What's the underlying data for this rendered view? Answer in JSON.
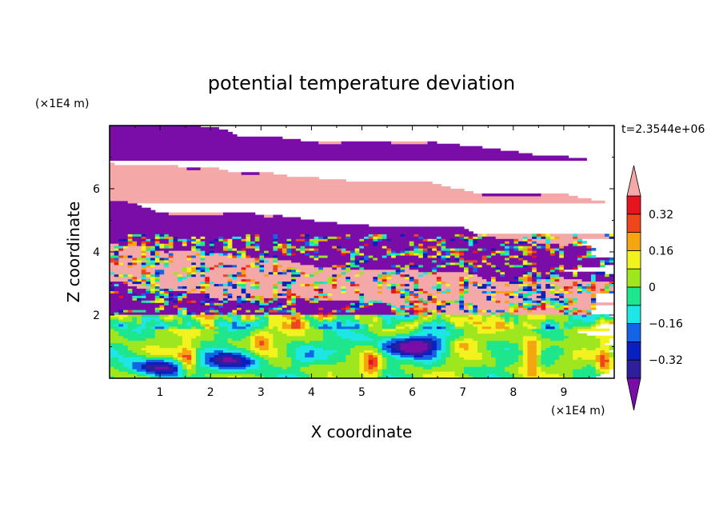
{
  "chart_data": {
    "type": "heatmap",
    "title": "potential temperature deviation",
    "xlabel": "X coordinate",
    "ylabel": "Z coordinate",
    "x_unit": "(×1E4 m)",
    "y_unit": "(×1E4 m)",
    "time_label": "t=2.3544e+06",
    "xlim": [
      0,
      10
    ],
    "ylim": [
      0,
      8
    ],
    "x_ticks": [
      "1",
      "2",
      "3",
      "4",
      "5",
      "6",
      "7",
      "8",
      "9"
    ],
    "y_ticks": [
      "2",
      "4",
      "6"
    ],
    "colorbar": {
      "levels": [
        -0.4,
        -0.32,
        -0.24,
        -0.16,
        -0.08,
        0,
        0.08,
        0.16,
        0.24,
        0.32,
        0.4
      ],
      "tick_labels": [
        "0.32",
        "0.16",
        "0",
        "−0.16",
        "−0.32"
      ],
      "extend": "both",
      "colors": [
        "#7a0ca8",
        "#2f1f9c",
        "#0a1fbf",
        "#1464e6",
        "#1ee6e6",
        "#1ee68c",
        "#9ee61e",
        "#f2f21e",
        "#f5a50f",
        "#f0461e",
        "#e6141e",
        "#f5a8a8"
      ]
    },
    "grid": false
  }
}
